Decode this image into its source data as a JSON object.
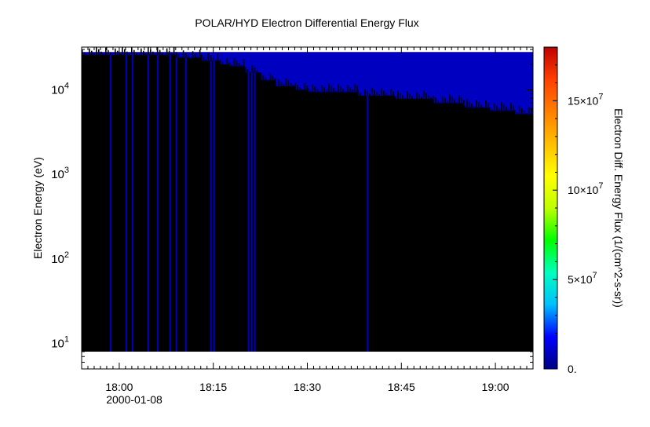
{
  "chart_data": {
    "type": "heatmap",
    "title": "POLAR/HYD  Electron Differential Energy Flux",
    "ylabel": "Electron Energy (eV)",
    "y_scale": "log",
    "ylim": [
      5,
      32000
    ],
    "xlim": [
      "17:54",
      "19:06"
    ],
    "x_ticks": [
      "18:00",
      "18:15",
      "18:30",
      "18:45",
      "19:00"
    ],
    "x_tick_minutes": [
      0,
      15,
      30,
      45,
      60
    ],
    "x_range_minutes": [
      -6,
      66
    ],
    "date_label": "2000-01-08",
    "y_ticks": [
      {
        "base": "10",
        "exp": "1",
        "value": 10
      },
      {
        "base": "10",
        "exp": "2",
        "value": 100
      },
      {
        "base": "10",
        "exp": "3",
        "value": 1000
      },
      {
        "base": "10",
        "exp": "4",
        "value": 10000
      }
    ],
    "data_energy_range": [
      8,
      28000
    ],
    "colorbar": {
      "label": "Electron Diff. Energy Flux (1/(cm^2-s-sr))",
      "min": 0,
      "max": 180000000,
      "ticks": [
        {
          "value": 0,
          "base": "0.",
          "exp": ""
        },
        {
          "value": 50000000,
          "base": "5×10",
          "exp": "7"
        },
        {
          "value": 100000000,
          "base": "10×10",
          "exp": "7"
        },
        {
          "value": 150000000,
          "base": "15×10",
          "exp": "7"
        }
      ],
      "colors": [
        "#00007f",
        "#0000ff",
        "#00bfff",
        "#00ffbf",
        "#00ff00",
        "#bfff00",
        "#ffff00",
        "#ffbf00",
        "#ff7f00",
        "#ff3f00",
        "#bf0000"
      ]
    },
    "background_value_color": "#0000c0",
    "low_flux_color": "#000000",
    "flux_boundary": [
      {
        "t": -6,
        "e": 26000
      },
      {
        "t": 6,
        "e": 26000
      },
      {
        "t": 9,
        "e": 24000
      },
      {
        "t": 13,
        "e": 22000
      },
      {
        "t": 16,
        "e": 20000
      },
      {
        "t": 17.5,
        "e": 19000
      },
      {
        "t": 20,
        "e": 16000
      },
      {
        "t": 22.5,
        "e": 13000
      },
      {
        "t": 25,
        "e": 11000
      },
      {
        "t": 28,
        "e": 10000
      },
      {
        "t": 30,
        "e": 9500
      },
      {
        "t": 38,
        "e": 8500
      },
      {
        "t": 44,
        "e": 7800
      },
      {
        "t": 50,
        "e": 7000
      },
      {
        "t": 55,
        "e": 6200
      },
      {
        "t": 59,
        "e": 5700
      },
      {
        "t": 63,
        "e": 5200
      },
      {
        "t": 66,
        "e": 4700
      }
    ],
    "flux_stripes_minutes": [
      -1.5,
      1,
      2,
      4.5,
      6,
      8,
      9,
      10.5,
      14.5,
      15,
      20.5,
      21,
      21.5,
      39.5
    ]
  }
}
